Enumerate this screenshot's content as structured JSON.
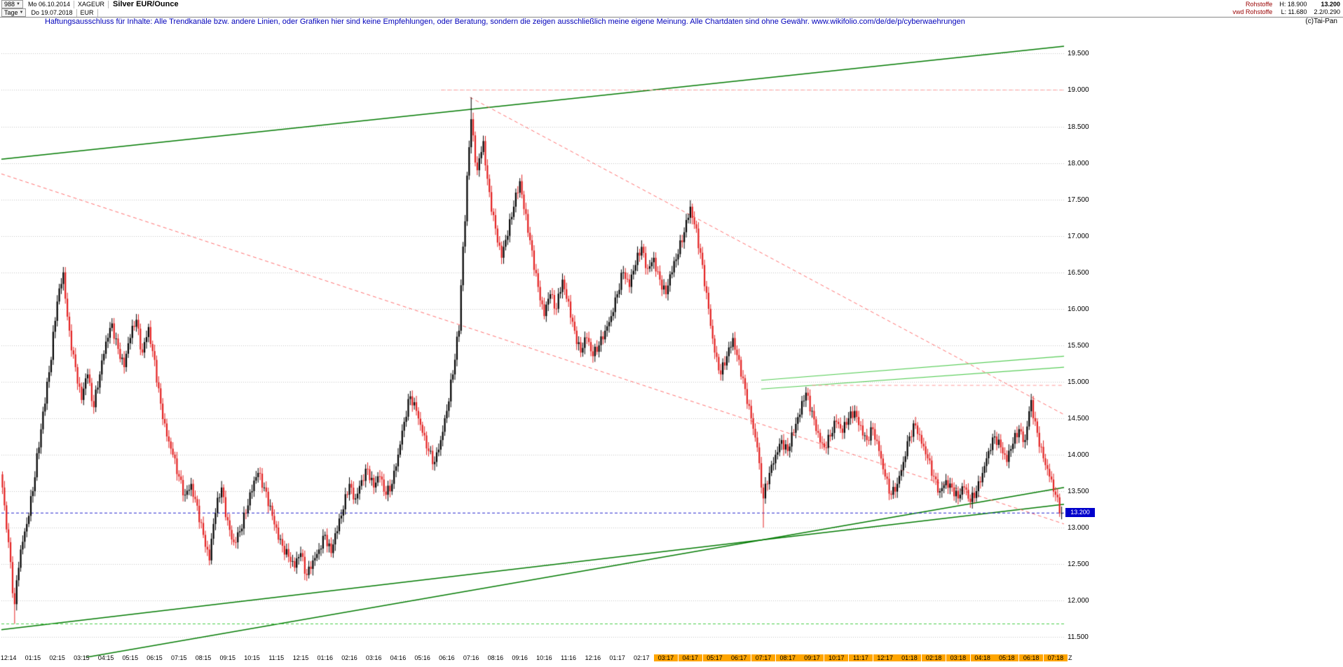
{
  "header": {
    "bars_count": "988",
    "start_date": "Mo 06.10.2014",
    "symbol": "XAGEUR",
    "title": "Silver EUR/Ounce",
    "period": "Tage",
    "end_date": "Do 19.07.2018",
    "currency": "EUR",
    "right": {
      "category": "Rohstoffe",
      "source": "vwd Rohstoffe",
      "high_label": "H: 18.900",
      "low_label": "L: 11.680",
      "last_price": "13.200",
      "change": "2.2/0.290"
    }
  },
  "disclaimer": "Haftungsausschluss für Inhalte: Alle Trendkanäle bzw. andere Linien, oder Grafiken hier sind keine Empfehlungen, oder Beratung, sondern die zeigen ausschließlich meine eigene Meinung. Alle Chartdaten sind ohne Gewähr.  www.wikifolio.com/de/de/p/cyberwaehrungen",
  "copyright": "(c)Tai-Pan",
  "chart_data": {
    "type": "candlestick",
    "title": "Silver EUR/Ounce",
    "symbol": "XAGEUR",
    "period": "Tage (daily)",
    "date_range": [
      "06.10.2014",
      "19.07.2018"
    ],
    "high_total": 18.9,
    "low_total": 11.68,
    "last": 13.2,
    "y_axis": {
      "side": "right",
      "min": 11.3,
      "max": 19.85,
      "tick_min": 11.5,
      "tick_max": 19.5,
      "tick_step": 0.5
    },
    "x_labels": [
      {
        "label": "12:14",
        "highlighted": false
      },
      {
        "label": "01:15",
        "highlighted": false
      },
      {
        "label": "02:15",
        "highlighted": false
      },
      {
        "label": "03:15",
        "highlighted": false
      },
      {
        "label": "04:15",
        "highlighted": false
      },
      {
        "label": "05:15",
        "highlighted": false
      },
      {
        "label": "06:15",
        "highlighted": false
      },
      {
        "label": "07:15",
        "highlighted": false
      },
      {
        "label": "08:15",
        "highlighted": false
      },
      {
        "label": "09:15",
        "highlighted": false
      },
      {
        "label": "10:15",
        "highlighted": false
      },
      {
        "label": "11:15",
        "highlighted": false
      },
      {
        "label": "12:15",
        "highlighted": false
      },
      {
        "label": "01:16",
        "highlighted": false
      },
      {
        "label": "02:16",
        "highlighted": false
      },
      {
        "label": "03:16",
        "highlighted": false
      },
      {
        "label": "04:16",
        "highlighted": false
      },
      {
        "label": "05:16",
        "highlighted": false
      },
      {
        "label": "06:16",
        "highlighted": false
      },
      {
        "label": "07:16",
        "highlighted": false
      },
      {
        "label": "08:16",
        "highlighted": false
      },
      {
        "label": "09:16",
        "highlighted": false
      },
      {
        "label": "10:16",
        "highlighted": false
      },
      {
        "label": "11:16",
        "highlighted": false
      },
      {
        "label": "12:16",
        "highlighted": false
      },
      {
        "label": "01:17",
        "highlighted": false
      },
      {
        "label": "02:17",
        "highlighted": false
      },
      {
        "label": "03:17",
        "highlighted": true
      },
      {
        "label": "04:17",
        "highlighted": true
      },
      {
        "label": "05:17",
        "highlighted": true
      },
      {
        "label": "06:17",
        "highlighted": true
      },
      {
        "label": "07:17",
        "highlighted": true
      },
      {
        "label": "08:17",
        "highlighted": true
      },
      {
        "label": "09:17",
        "highlighted": true
      },
      {
        "label": "10:17",
        "highlighted": true
      },
      {
        "label": "11:17",
        "highlighted": true
      },
      {
        "label": "12:17",
        "highlighted": true
      },
      {
        "label": "01:18",
        "highlighted": true
      },
      {
        "label": "02:18",
        "highlighted": true
      },
      {
        "label": "03:18",
        "highlighted": true
      },
      {
        "label": "04:18",
        "highlighted": true
      },
      {
        "label": "05:18",
        "highlighted": true
      },
      {
        "label": "06:18",
        "highlighted": true
      },
      {
        "label": "07:18",
        "highlighted": true
      }
    ],
    "x_suffix": "Z",
    "closes_weekly": [
      13.55,
      12.8,
      11.95,
      12.7,
      13.05,
      13.5,
      14.1,
      14.7,
      15.3,
      16.1,
      16.5,
      15.7,
      15.2,
      14.75,
      15.1,
      14.65,
      15.1,
      15.55,
      15.8,
      15.45,
      15.2,
      15.6,
      15.85,
      15.4,
      15.75,
      15.3,
      14.7,
      14.25,
      14.0,
      13.7,
      13.45,
      13.6,
      13.3,
      12.9,
      12.55,
      13.2,
      13.55,
      13.1,
      12.8,
      12.95,
      13.2,
      13.5,
      13.75,
      13.55,
      13.3,
      13.0,
      12.75,
      12.6,
      12.45,
      12.65,
      12.35,
      12.55,
      12.7,
      12.9,
      12.65,
      12.95,
      13.25,
      13.6,
      13.4,
      13.65,
      13.8,
      13.55,
      13.7,
      13.45,
      13.6,
      14.0,
      14.45,
      14.8,
      14.6,
      14.3,
      14.05,
      13.9,
      14.2,
      14.6,
      15.1,
      15.7,
      17.2,
      18.6,
      17.9,
      18.3,
      17.6,
      17.1,
      16.7,
      17.0,
      17.4,
      17.75,
      17.3,
      16.8,
      16.3,
      15.9,
      16.2,
      16.0,
      16.4,
      16.1,
      15.7,
      15.4,
      15.6,
      15.35,
      15.5,
      15.7,
      15.9,
      16.2,
      16.5,
      16.3,
      16.6,
      16.85,
      16.55,
      16.7,
      16.4,
      16.2,
      16.5,
      16.75,
      17.05,
      17.4,
      17.1,
      16.6,
      16.0,
      15.4,
      15.1,
      15.35,
      15.6,
      15.3,
      14.9,
      14.5,
      14.1,
      13.4,
      13.75,
      14.0,
      14.2,
      14.05,
      14.3,
      14.55,
      14.85,
      14.6,
      14.3,
      14.1,
      14.25,
      14.45,
      14.3,
      14.5,
      14.6,
      14.4,
      14.2,
      14.35,
      14.05,
      13.7,
      13.45,
      13.6,
      13.9,
      14.25,
      14.4,
      14.15,
      13.95,
      13.7,
      13.5,
      13.65,
      13.55,
      13.4,
      13.55,
      13.35,
      13.5,
      13.75,
      14.05,
      14.25,
      14.1,
      13.9,
      14.15,
      14.35,
      14.2,
      14.75,
      14.3,
      13.95,
      13.7,
      13.45,
      13.2
    ],
    "wick_overrides": [
      {
        "index": 2,
        "low": 11.68
      },
      {
        "index": 77,
        "high": 18.9
      },
      {
        "index": 125,
        "low": 13.0
      }
    ],
    "last_price_marker": {
      "value": 13.2,
      "label": "13.200",
      "color": "#0000cc"
    },
    "trend_lines": [
      {
        "name": "upper-channel-line",
        "color": "#007a00",
        "width": 1.5,
        "dash": [],
        "x1": 0.0,
        "p1": 18.05,
        "x2": 1.0,
        "p2": 19.6
      },
      {
        "name": "lower-channel-line",
        "color": "#007a00",
        "width": 1.5,
        "dash": [],
        "x1": 0.0,
        "p1": 11.6,
        "x2": 1.0,
        "p2": 13.32
      },
      {
        "name": "support-trend-line",
        "color": "#007a00",
        "width": 1.5,
        "dash": [],
        "x1": 0.0,
        "p1": 11.02,
        "x2": 1.0,
        "p2": 13.55
      },
      {
        "name": "minor-resistance-line-1",
        "color": "#55cc55",
        "width": 1.2,
        "dash": [],
        "x1": 0.715,
        "p1": 15.02,
        "x2": 1.0,
        "p2": 15.35
      },
      {
        "name": "minor-resistance-line-2",
        "color": "#55cc55",
        "width": 1.2,
        "dash": [],
        "x1": 0.715,
        "p1": 14.9,
        "x2": 1.0,
        "p2": 15.2
      },
      {
        "name": "descending-resistance-dashed-1",
        "color": "#ff7070",
        "width": 1,
        "dash": [
          5,
          4
        ],
        "x1": 0.0,
        "p1": 17.85,
        "x2": 1.0,
        "p2": 13.05
      },
      {
        "name": "descending-resistance-dashed-2",
        "color": "#ff7070",
        "width": 1,
        "dash": [
          5,
          4
        ],
        "x1": 0.441,
        "p1": 18.9,
        "x2": 1.0,
        "p2": 14.55
      },
      {
        "name": "horizontal-resistance-19000",
        "color": "#ff9999",
        "width": 1,
        "dash": [
          5,
          4
        ],
        "x1": 0.414,
        "p1": 19.0,
        "x2": 1.0,
        "p2": 19.0
      },
      {
        "name": "horizontal-resistance-14950",
        "color": "#ff9999",
        "width": 1,
        "dash": [
          5,
          4
        ],
        "x1": 0.763,
        "p1": 14.95,
        "x2": 1.0,
        "p2": 14.95
      },
      {
        "name": "all-time-low-dashed-green",
        "color": "#44cc44",
        "width": 1,
        "dash": [
          4,
          3
        ],
        "x1": 0.0,
        "p1": 11.68,
        "x2": 1.0,
        "p2": 11.68
      },
      {
        "name": "current-price-dashed-blue",
        "color": "#2222cc",
        "width": 1,
        "dash": [
          4,
          3
        ],
        "x1": 0.0,
        "p1": 13.2,
        "x2": 1.0,
        "p2": 13.2
      }
    ],
    "colors": {
      "up": "#000000",
      "down": "#e32222",
      "grid": "#c4c4c4",
      "axis_text": "#000000",
      "label_highlight": "#ffa500"
    }
  }
}
